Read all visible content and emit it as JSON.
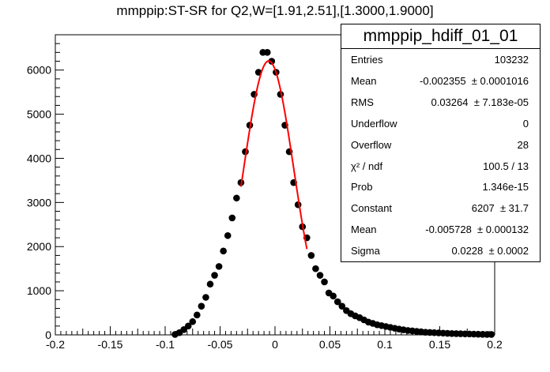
{
  "title": "mmppip:ST-SR for Q2,W=[1.91,2.51],[1.3000,1.9000]",
  "stats": {
    "name": "mmppip_hdiff_01_01",
    "rows": [
      {
        "label": "Entries",
        "value": "103232"
      },
      {
        "label": "Mean",
        "value": "-0.002355  ± 0.0001016"
      },
      {
        "label": "RMS",
        "value": "0.03264  ± 7.183e-05"
      },
      {
        "label": "Underflow",
        "value": "0"
      },
      {
        "label": "Overflow",
        "value": "28"
      },
      {
        "label": "χ² / ndf",
        "value": "100.5 / 13"
      },
      {
        "label": "Prob",
        "value": "1.346e-15"
      },
      {
        "label": "Constant",
        "value": "6207  ± 31.7"
      },
      {
        "label": "Mean",
        "value": "-0.005728  ± 0.000132"
      },
      {
        "label": "Sigma",
        "value": "0.0228  ± 0.0002"
      }
    ]
  },
  "chart_data": {
    "type": "scatter",
    "title": "mmppip:ST-SR for Q2,W=[1.91,2.51],[1.3000,1.9000]",
    "xlim": [
      -0.2,
      0.2
    ],
    "ylim": [
      0,
      6800
    ],
    "xticks": [
      "-0.2",
      "-0.15",
      "-0.1",
      "-0.05",
      "0",
      "0.05",
      "0.1",
      "0.15",
      "0.2"
    ],
    "yticks": [
      "0",
      "1000",
      "2000",
      "3000",
      "4000",
      "5000",
      "6000"
    ],
    "marker_color": "#000000",
    "fit_color": "#ff0000",
    "points": {
      "x": [
        -0.091,
        -0.087,
        -0.083,
        -0.079,
        -0.075,
        -0.071,
        -0.067,
        -0.063,
        -0.059,
        -0.055,
        -0.051,
        -0.047,
        -0.043,
        -0.039,
        -0.035,
        -0.031,
        -0.027,
        -0.023,
        -0.019,
        -0.015,
        -0.011,
        -0.007,
        -0.003,
        0.001,
        0.005,
        0.009,
        0.013,
        0.017,
        0.021,
        0.025,
        0.029,
        0.033,
        0.037,
        0.041,
        0.045,
        0.049,
        0.053,
        0.057,
        0.061,
        0.065,
        0.069,
        0.073,
        0.077,
        0.081,
        0.085,
        0.089,
        0.093,
        0.097,
        0.101,
        0.105,
        0.109,
        0.113,
        0.117,
        0.121,
        0.125,
        0.129,
        0.133,
        0.137,
        0.141,
        0.145,
        0.149,
        0.153,
        0.157,
        0.161,
        0.165,
        0.169,
        0.173,
        0.177,
        0.181,
        0.185,
        0.189,
        0.193,
        0.197
      ],
      "y": [
        10,
        50,
        120,
        200,
        300,
        450,
        650,
        850,
        1150,
        1350,
        1550,
        1900,
        2250,
        2650,
        3100,
        3450,
        4150,
        4750,
        5450,
        5950,
        6400,
        6400,
        6200,
        5950,
        5450,
        4750,
        4150,
        3450,
        2950,
        2450,
        2200,
        1800,
        1500,
        1350,
        1200,
        950,
        880,
        750,
        650,
        550,
        480,
        430,
        390,
        340,
        290,
        260,
        230,
        210,
        190,
        170,
        150,
        130,
        115,
        100,
        90,
        80,
        70,
        60,
        55,
        50,
        45,
        40,
        35,
        30,
        28,
        25,
        22,
        20,
        18,
        15,
        12,
        10,
        10
      ]
    },
    "fit": {
      "function": "gaus",
      "constant": 6207,
      "mean": -0.005728,
      "sigma": 0.0228,
      "x_range": [
        -0.031,
        0.029
      ]
    }
  }
}
